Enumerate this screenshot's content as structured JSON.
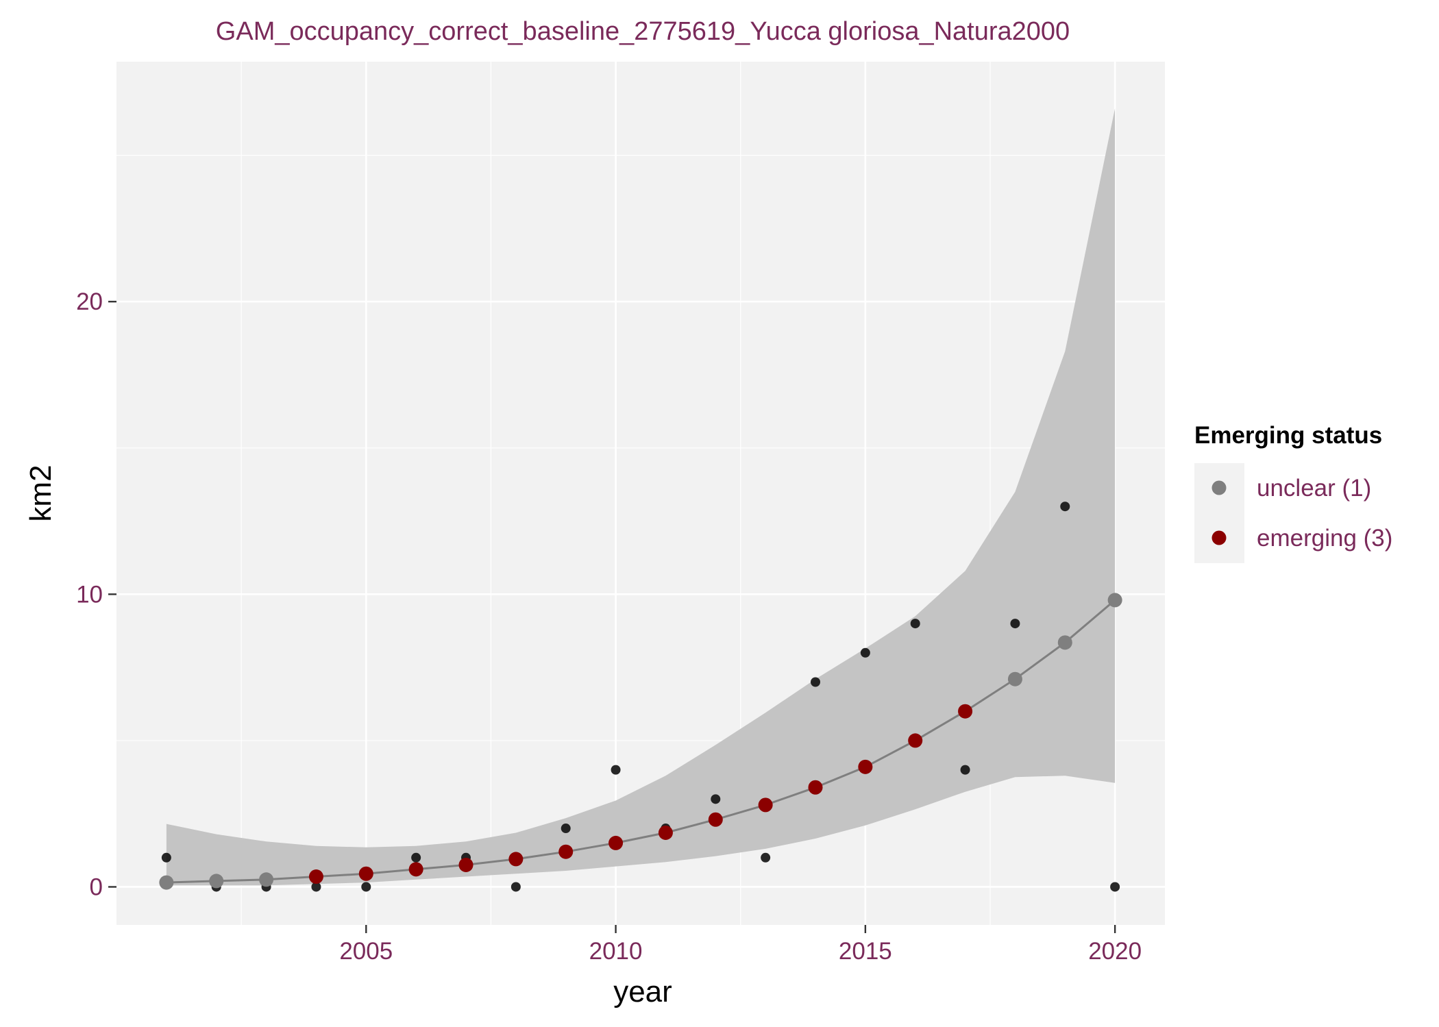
{
  "chart_data": {
    "type": "scatter",
    "title": "GAM_occupancy_correct_baseline_2775619_Yucca gloriosa_Natura2000",
    "xlabel": "year",
    "ylabel": "km2",
    "xlim": [
      2000.0,
      2021.0
    ],
    "ylim": [
      -1.3,
      28.2
    ],
    "x_ticks": [
      2005,
      2010,
      2015,
      2020
    ],
    "x_minor_ticks": [
      2002.5,
      2007.5,
      2012.5,
      2017.5
    ],
    "y_ticks": [
      0,
      10,
      20
    ],
    "y_minor_ticks": [
      5,
      15,
      25
    ],
    "grid": true,
    "legend": {
      "title": "Emerging status",
      "position": "right",
      "entries": [
        {
          "label": "unclear (1)",
          "color": "#7f7f7f"
        },
        {
          "label": "emerging (3)",
          "color": "#8b0000"
        }
      ]
    },
    "observed": {
      "color": "#111111",
      "points": [
        {
          "x": 2001,
          "y": 1
        },
        {
          "x": 2002,
          "y": 0
        },
        {
          "x": 2003,
          "y": 0
        },
        {
          "x": 2004,
          "y": 0
        },
        {
          "x": 2005,
          "y": 0
        },
        {
          "x": 2006,
          "y": 1
        },
        {
          "x": 2007,
          "y": 1
        },
        {
          "x": 2008,
          "y": 0
        },
        {
          "x": 2009,
          "y": 2
        },
        {
          "x": 2010,
          "y": 4
        },
        {
          "x": 2011,
          "y": 2
        },
        {
          "x": 2012,
          "y": 3
        },
        {
          "x": 2013,
          "y": 1
        },
        {
          "x": 2014,
          "y": 7
        },
        {
          "x": 2015,
          "y": 8
        },
        {
          "x": 2016,
          "y": 9
        },
        {
          "x": 2017,
          "y": 4
        },
        {
          "x": 2018,
          "y": 9
        },
        {
          "x": 2019,
          "y": 13
        },
        {
          "x": 2020,
          "y": 0
        }
      ]
    },
    "fitted": {
      "line_color": "#7f7f7f",
      "points": [
        {
          "x": 2001,
          "y": 0.15,
          "status": "unclear (1)"
        },
        {
          "x": 2002,
          "y": 0.2,
          "status": "unclear (1)"
        },
        {
          "x": 2003,
          "y": 0.25,
          "status": "unclear (1)"
        },
        {
          "x": 2004,
          "y": 0.35,
          "status": "emerging (3)"
        },
        {
          "x": 2005,
          "y": 0.45,
          "status": "emerging (3)"
        },
        {
          "x": 2006,
          "y": 0.6,
          "status": "emerging (3)"
        },
        {
          "x": 2007,
          "y": 0.75,
          "status": "emerging (3)"
        },
        {
          "x": 2008,
          "y": 0.95,
          "status": "emerging (3)"
        },
        {
          "x": 2009,
          "y": 1.2,
          "status": "emerging (3)"
        },
        {
          "x": 2010,
          "y": 1.5,
          "status": "emerging (3)"
        },
        {
          "x": 2011,
          "y": 1.85,
          "status": "emerging (3)"
        },
        {
          "x": 2012,
          "y": 2.3,
          "status": "emerging (3)"
        },
        {
          "x": 2013,
          "y": 2.8,
          "status": "emerging (3)"
        },
        {
          "x": 2014,
          "y": 3.4,
          "status": "emerging (3)"
        },
        {
          "x": 2015,
          "y": 4.1,
          "status": "emerging (3)"
        },
        {
          "x": 2016,
          "y": 5.0,
          "status": "emerging (3)"
        },
        {
          "x": 2017,
          "y": 6.0,
          "status": "emerging (3)"
        },
        {
          "x": 2018,
          "y": 7.1,
          "status": "unclear (1)"
        },
        {
          "x": 2019,
          "y": 8.35,
          "status": "unclear (1)"
        },
        {
          "x": 2020,
          "y": 9.8,
          "status": "unclear (1)"
        }
      ]
    },
    "confidence_band": {
      "color": "#c4c4c4",
      "x": [
        2001,
        2002,
        2003,
        2004,
        2005,
        2006,
        2007,
        2008,
        2009,
        2010,
        2011,
        2012,
        2013,
        2014,
        2015,
        2016,
        2017,
        2018,
        2019,
        2020
      ],
      "lower": [
        0.05,
        0.05,
        0.05,
        0.1,
        0.15,
        0.25,
        0.35,
        0.45,
        0.55,
        0.7,
        0.85,
        1.05,
        1.3,
        1.65,
        2.1,
        2.65,
        3.25,
        3.75,
        3.8,
        3.55
      ],
      "upper": [
        2.15,
        1.8,
        1.55,
        1.4,
        1.35,
        1.4,
        1.55,
        1.85,
        2.35,
        2.95,
        3.8,
        4.85,
        5.95,
        7.1,
        8.15,
        9.25,
        10.8,
        13.5,
        18.3,
        26.6
      ]
    }
  }
}
